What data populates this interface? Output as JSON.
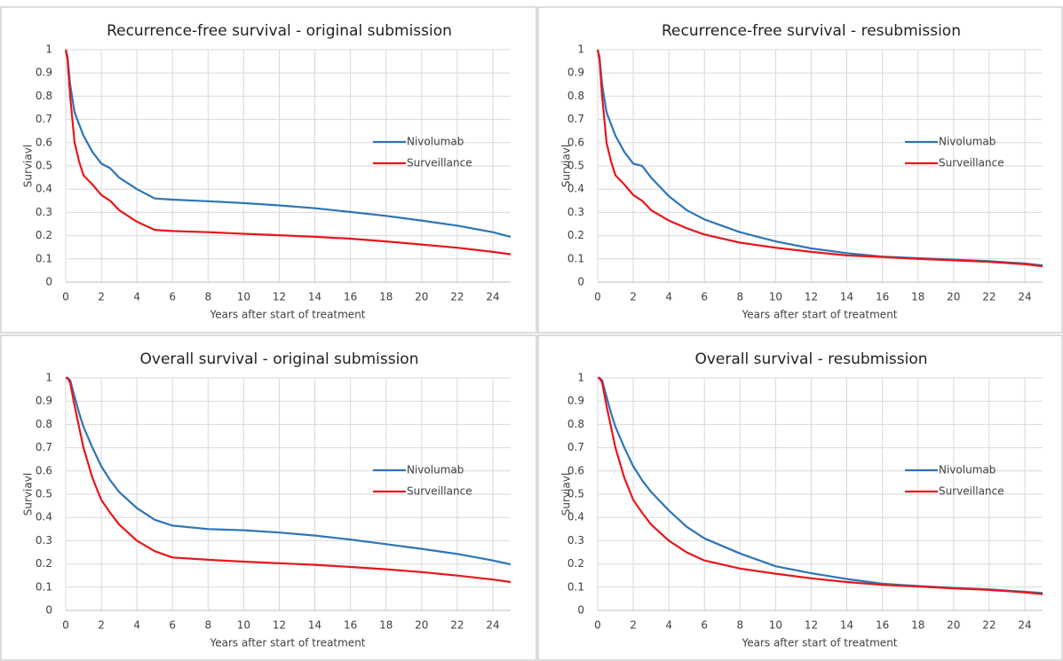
{
  "chart_data": [
    {
      "type": "line",
      "title": "Recurrence-free survival - original submission",
      "x_label": "Years after start of treatment",
      "y_label": "Surviavl",
      "x": [
        0,
        0.1,
        0.25,
        0.5,
        0.75,
        1,
        1.5,
        2,
        2.5,
        3,
        4,
        5,
        6,
        8,
        10,
        12,
        14,
        16,
        18,
        20,
        22,
        24,
        25
      ],
      "series": [
        {
          "name": "Nivolumab",
          "color": "#2e75b6",
          "values": [
            1,
            0.97,
            0.85,
            0.73,
            0.68,
            0.63,
            0.56,
            0.51,
            0.49,
            0.45,
            0.4,
            0.36,
            0.355,
            0.348,
            0.34,
            0.33,
            0.318,
            0.302,
            0.285,
            0.265,
            0.243,
            0.215,
            0.195
          ]
        },
        {
          "name": "Surveillance",
          "color": "#e8161b",
          "values": [
            1,
            0.96,
            0.8,
            0.6,
            0.52,
            0.46,
            0.42,
            0.375,
            0.35,
            0.31,
            0.26,
            0.225,
            0.22,
            0.215,
            0.208,
            0.202,
            0.195,
            0.187,
            0.175,
            0.162,
            0.148,
            0.13,
            0.12
          ]
        }
      ],
      "xlim": [
        0,
        25
      ],
      "xticks": [
        0,
        2,
        4,
        6,
        8,
        10,
        12,
        14,
        16,
        18,
        20,
        22,
        24
      ],
      "ylim": [
        0,
        1
      ],
      "yticks": [
        0,
        0.1,
        0.2,
        0.3,
        0.4,
        0.5,
        0.6,
        0.7,
        0.8,
        0.9,
        1
      ],
      "grid": true,
      "legend": "right"
    },
    {
      "type": "line",
      "title": "Recurrence-free survival - resubmission",
      "x_label": "Years after start of treatment",
      "y_label": "Surviavl",
      "x": [
        0,
        0.1,
        0.25,
        0.5,
        0.75,
        1,
        1.5,
        2,
        2.5,
        3,
        4,
        5,
        6,
        8,
        10,
        12,
        14,
        16,
        18,
        20,
        22,
        24,
        25
      ],
      "series": [
        {
          "name": "Nivolumab",
          "color": "#2e75b6",
          "values": [
            1,
            0.97,
            0.85,
            0.73,
            0.68,
            0.63,
            0.56,
            0.51,
            0.5,
            0.45,
            0.37,
            0.31,
            0.27,
            0.215,
            0.175,
            0.145,
            0.125,
            0.11,
            0.103,
            0.097,
            0.09,
            0.08,
            0.072
          ]
        },
        {
          "name": "Surveillance",
          "color": "#e8161b",
          "values": [
            1,
            0.96,
            0.8,
            0.6,
            0.52,
            0.46,
            0.42,
            0.375,
            0.35,
            0.31,
            0.265,
            0.232,
            0.205,
            0.17,
            0.148,
            0.13,
            0.115,
            0.108,
            0.1,
            0.094,
            0.087,
            0.077,
            0.068
          ]
        }
      ],
      "xlim": [
        0,
        25
      ],
      "xticks": [
        0,
        2,
        4,
        6,
        8,
        10,
        12,
        14,
        16,
        18,
        20,
        22,
        24
      ],
      "ylim": [
        0,
        1
      ],
      "yticks": [
        0,
        0.1,
        0.2,
        0.3,
        0.4,
        0.5,
        0.6,
        0.7,
        0.8,
        0.9,
        1
      ],
      "grid": true,
      "legend": "right"
    },
    {
      "type": "line",
      "title": "Overall survival - original submission",
      "x_label": "Years after start of treatment",
      "y_label": "Surviavl",
      "x": [
        0,
        0.1,
        0.25,
        0.5,
        0.75,
        1,
        1.5,
        2,
        2.5,
        3,
        4,
        5,
        6,
        8,
        10,
        12,
        14,
        16,
        18,
        20,
        22,
        24,
        25
      ],
      "series": [
        {
          "name": "Nivolumab",
          "color": "#2e75b6",
          "values": [
            1,
            1,
            0.99,
            0.92,
            0.85,
            0.79,
            0.7,
            0.62,
            0.56,
            0.51,
            0.44,
            0.39,
            0.365,
            0.35,
            0.345,
            0.335,
            0.322,
            0.305,
            0.285,
            0.265,
            0.243,
            0.215,
            0.198
          ]
        },
        {
          "name": "Surveillance",
          "color": "#e8161b",
          "values": [
            1,
            1,
            0.98,
            0.88,
            0.79,
            0.7,
            0.57,
            0.475,
            0.42,
            0.37,
            0.3,
            0.255,
            0.228,
            0.218,
            0.21,
            0.203,
            0.196,
            0.187,
            0.177,
            0.165,
            0.15,
            0.133,
            0.122
          ]
        }
      ],
      "xlim": [
        0,
        25
      ],
      "xticks": [
        0,
        2,
        4,
        6,
        8,
        10,
        12,
        14,
        16,
        18,
        20,
        22,
        24
      ],
      "ylim": [
        0,
        1
      ],
      "yticks": [
        0,
        0.1,
        0.2,
        0.3,
        0.4,
        0.5,
        0.6,
        0.7,
        0.8,
        0.9,
        1
      ],
      "grid": true,
      "legend": "right"
    },
    {
      "type": "line",
      "title": "Overall survival - resubmission",
      "x_label": "Years after start of treatment",
      "y_label": "Surviavl",
      "x": [
        0,
        0.1,
        0.25,
        0.5,
        0.75,
        1,
        1.5,
        2,
        2.5,
        3,
        4,
        5,
        6,
        8,
        10,
        12,
        14,
        16,
        18,
        20,
        22,
        24,
        25
      ],
      "series": [
        {
          "name": "Nivolumab",
          "color": "#2e75b6",
          "values": [
            1,
            1,
            0.99,
            0.92,
            0.85,
            0.79,
            0.7,
            0.62,
            0.56,
            0.51,
            0.43,
            0.36,
            0.31,
            0.245,
            0.19,
            0.16,
            0.135,
            0.115,
            0.105,
            0.097,
            0.09,
            0.08,
            0.075
          ]
        },
        {
          "name": "Surveillance",
          "color": "#e8161b",
          "values": [
            1,
            1,
            0.98,
            0.88,
            0.79,
            0.7,
            0.57,
            0.475,
            0.42,
            0.37,
            0.3,
            0.25,
            0.215,
            0.18,
            0.158,
            0.138,
            0.122,
            0.11,
            0.103,
            0.095,
            0.088,
            0.078,
            0.07
          ]
        }
      ],
      "xlim": [
        0,
        25
      ],
      "xticks": [
        0,
        2,
        4,
        6,
        8,
        10,
        12,
        14,
        16,
        18,
        20,
        22,
        24
      ],
      "ylim": [
        0,
        1
      ],
      "yticks": [
        0,
        0.1,
        0.2,
        0.3,
        0.4,
        0.5,
        0.6,
        0.7,
        0.8,
        0.9,
        1
      ],
      "grid": true,
      "legend": "right"
    }
  ]
}
